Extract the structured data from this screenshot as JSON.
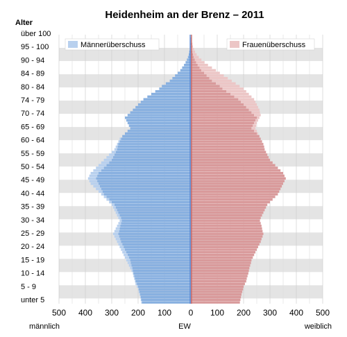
{
  "chart_data": {
    "type": "bar",
    "orientation": "horizontal-population-pyramid",
    "title": "Heidenheim an der Brenz – 2011",
    "y_axis_title": "Alter",
    "x_axis_label": "EW",
    "left_label": "männlich",
    "right_label": "weiblich",
    "xlim": [
      -500,
      500
    ],
    "x_ticks": [
      -500,
      -400,
      -300,
      -200,
      -100,
      0,
      100,
      200,
      300,
      400,
      500
    ],
    "x_tick_labels": [
      "500",
      "400",
      "300",
      "200",
      "100",
      "0",
      "100",
      "200",
      "300",
      "400",
      "500"
    ],
    "age_tick_labels": [
      "über 100",
      "95 - 100",
      "90 - 94",
      "84 - 89",
      "80 - 84",
      "74 - 79",
      "70 - 74",
      "65 - 69",
      "60 - 64",
      "55 - 59",
      "50 - 54",
      "45 - 49",
      "40 - 44",
      "35 - 39",
      "30 - 34",
      "25 - 29",
      "20 - 24",
      "15 - 19",
      "10 - 14",
      "5 - 9",
      "unter 5"
    ],
    "legend": {
      "male_surplus": "Männerüberschuss",
      "female_surplus": "Frauenüberschuss"
    },
    "colors": {
      "male": "#88b0e0",
      "female": "#d99a9b",
      "male_surplus": "#b8d0ee",
      "female_surplus": "#ecc6c6",
      "male_axis": "#4f7fcf",
      "female_axis": "#c06060",
      "band": "#e4e4e4"
    },
    "ages": [
      101,
      100,
      99,
      98,
      97,
      96,
      95,
      94,
      93,
      92,
      91,
      90,
      89,
      88,
      87,
      86,
      85,
      84,
      83,
      82,
      81,
      80,
      79,
      78,
      77,
      76,
      75,
      74,
      73,
      72,
      71,
      70,
      69,
      68,
      67,
      66,
      65,
      64,
      63,
      62,
      61,
      60,
      59,
      58,
      57,
      56,
      55,
      54,
      53,
      52,
      51,
      50,
      49,
      48,
      47,
      46,
      45,
      44,
      43,
      42,
      41,
      40,
      39,
      38,
      37,
      36,
      35,
      34,
      33,
      32,
      31,
      30,
      29,
      28,
      27,
      26,
      25,
      24,
      23,
      22,
      21,
      20,
      19,
      18,
      17,
      16,
      15,
      14,
      13,
      12,
      11,
      10,
      9,
      8,
      7,
      6,
      5,
      4,
      3,
      2,
      1,
      0
    ],
    "male": [
      0,
      1,
      1,
      2,
      3,
      4,
      6,
      8,
      11,
      15,
      20,
      26,
      33,
      40,
      50,
      60,
      70,
      80,
      95,
      110,
      120,
      135,
      150,
      165,
      180,
      190,
      200,
      210,
      220,
      230,
      240,
      250,
      245,
      240,
      235,
      230,
      240,
      250,
      260,
      270,
      275,
      280,
      285,
      290,
      300,
      310,
      320,
      330,
      340,
      350,
      360,
      370,
      380,
      385,
      390,
      385,
      380,
      370,
      360,
      350,
      340,
      330,
      320,
      310,
      300,
      295,
      290,
      285,
      280,
      275,
      270,
      275,
      280,
      285,
      290,
      295,
      290,
      285,
      280,
      275,
      270,
      265,
      260,
      255,
      250,
      245,
      240,
      235,
      230,
      225,
      220,
      218,
      215,
      212,
      210,
      205,
      200,
      198,
      195,
      192,
      190,
      188
    ],
    "female": [
      1,
      2,
      4,
      6,
      8,
      12,
      16,
      22,
      30,
      40,
      52,
      65,
      80,
      95,
      110,
      125,
      140,
      155,
      170,
      185,
      200,
      210,
      220,
      230,
      240,
      245,
      250,
      255,
      260,
      262,
      265,
      260,
      255,
      250,
      248,
      245,
      250,
      255,
      260,
      265,
      270,
      275,
      278,
      280,
      285,
      290,
      295,
      300,
      310,
      320,
      330,
      340,
      350,
      355,
      360,
      355,
      350,
      345,
      340,
      335,
      330,
      320,
      310,
      300,
      290,
      285,
      280,
      275,
      270,
      265,
      262,
      265,
      268,
      270,
      272,
      275,
      272,
      268,
      265,
      260,
      255,
      250,
      245,
      240,
      235,
      230,
      228,
      225,
      222,
      220,
      218,
      215,
      212,
      210,
      205,
      200,
      198,
      195,
      192,
      190,
      188,
      186
    ]
  }
}
